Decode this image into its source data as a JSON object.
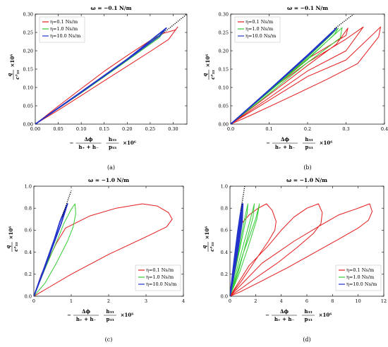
{
  "figure": {
    "panels": [
      {
        "id": "a",
        "title": "ω = −0.1 N/m",
        "caption": "(a)",
        "ylabel_num": "q",
        "ylabel_den": "c³₃₃",
        "ylabel_factor": "×10⁶",
        "xlabel_num": "Δϕ",
        "xlabel_den": "h₊ + h₋",
        "xlabel_frac2_num": "h₃₃",
        "xlabel_frac2_den": "p₃₃",
        "xlabel_prefix": "−",
        "xlabel_factor": "×10⁶",
        "legend": [
          "η=0.1 Ns/m",
          "η=1.0 Ns/m",
          "η=10.0 Ns/m"
        ],
        "xticks": [
          "0.00",
          "0.05",
          "0.10",
          "0.15",
          "0.20",
          "0.25",
          "0.30"
        ],
        "yticks": [
          "0.00",
          "0.05",
          "0.10",
          "0.15",
          "0.20",
          "0.25",
          "0.30"
        ]
      },
      {
        "id": "b",
        "title": "ω = −0.1 N/m",
        "caption": "(b)",
        "ylabel_num": "q",
        "ylabel_den": "c³₃₃",
        "ylabel_factor": "×10⁶",
        "xlabel_num": "Δϕ",
        "xlabel_den": "h₊ + h₋",
        "xlabel_frac2_num": "h₃₃",
        "xlabel_frac2_den": "p₃₃",
        "xlabel_prefix": "−",
        "xlabel_factor": "×10⁶",
        "legend": [
          "η=0.1 Ns/m",
          "η=1.0 Ns/m",
          "η=10.0 Ns/m"
        ],
        "xticks": [
          "0.0",
          "0.1",
          "0.2",
          "0.3",
          "0.4"
        ],
        "yticks": [
          "0.00",
          "0.05",
          "0.10",
          "0.15",
          "0.20",
          "0.25",
          "0.30"
        ]
      },
      {
        "id": "c",
        "title": "ω = −1.0 N/m",
        "caption": "(c)",
        "ylabel_num": "q",
        "ylabel_den": "c³₃₃",
        "ylabel_factor": "×10⁶",
        "xlabel_num": "Δϕ",
        "xlabel_den": "h₊ + h₋",
        "xlabel_frac2_num": "h₃₃",
        "xlabel_frac2_den": "p₃₃",
        "xlabel_prefix": "−",
        "xlabel_factor": "×10⁶",
        "legend": [
          "η=0.1 Ns/m",
          "η=1.0 Ns/m",
          "η=10.0 Ns/m"
        ],
        "xticks": [
          "0",
          "1",
          "2",
          "3",
          "4"
        ],
        "yticks": [
          "0.0",
          "0.2",
          "0.4",
          "0.6",
          "0.8",
          "1.0"
        ]
      },
      {
        "id": "d",
        "title": "ω = −1.0 N/m",
        "caption": "(d)",
        "ylabel_num": "q",
        "ylabel_den": "c³₃₃",
        "ylabel_factor": "×10⁶",
        "xlabel_num": "Δϕ",
        "xlabel_den": "h₊ + h₋",
        "xlabel_frac2_num": "h₃₃",
        "xlabel_frac2_den": "p₃₃",
        "xlabel_prefix": "−",
        "xlabel_factor": "×10⁶",
        "legend": [
          "η=0.1 Ns/m",
          "η=1.0 Ns/m",
          "η=10.0 Ns/m"
        ],
        "xticks": [
          "0",
          "2",
          "4",
          "6",
          "8",
          "10",
          "12"
        ],
        "yticks": [
          "0.0",
          "0.2",
          "0.4",
          "0.6",
          "0.8",
          "1.0"
        ]
      }
    ]
  },
  "chart_data": [
    {
      "type": "line",
      "xlim": [
        0,
        0.33
      ],
      "ylim": [
        0,
        0.3
      ],
      "legend_position": "top-left",
      "colors": {
        "eta_0_1": "#e41a1c",
        "eta_1_0": "#33cc33",
        "eta_10_0": "#2233cc",
        "reference": "#000000"
      },
      "series": [
        {
          "name": "η=0.1 Ns/m",
          "x": [
            0,
            0.05,
            0.1,
            0.15,
            0.2,
            0.25,
            0.29,
            0.31,
            0.305,
            0.28,
            0.25,
            0.2,
            0.15,
            0.1,
            0.05,
            0
          ],
          "y": [
            0,
            0.038,
            0.078,
            0.118,
            0.158,
            0.198,
            0.231,
            0.265,
            0.257,
            0.248,
            0.228,
            0.187,
            0.144,
            0.097,
            0.049,
            0
          ]
        },
        {
          "name": "η=1.0 Ns/m",
          "x": [
            0,
            0.1,
            0.2,
            0.27,
            0.285,
            0.27,
            0.2,
            0.1,
            0
          ],
          "y": [
            0,
            0.085,
            0.173,
            0.236,
            0.262,
            0.242,
            0.178,
            0.088,
            0
          ]
        },
        {
          "name": "η=10.0 Ns/m",
          "x": [
            0,
            0.1,
            0.2,
            0.285,
            0.27,
            0.2,
            0.1,
            0
          ],
          "y": [
            0,
            0.088,
            0.177,
            0.262,
            0.24,
            0.176,
            0.087,
            0
          ]
        },
        {
          "name": "",
          "style": "dotted",
          "x": [
            0.28,
            0.33
          ],
          "y": [
            0.25,
            0.3
          ]
        }
      ]
    },
    {
      "type": "line",
      "xlim": [
        0,
        0.4
      ],
      "ylim": [
        0,
        0.3
      ],
      "legend_position": "top-left",
      "series": [
        {
          "name": "η=0.1 Ns/m",
          "x": [
            0,
            0.1,
            0.2,
            0.3,
            0.345,
            0.3,
            0.2,
            0.1,
            0,
            0.1,
            0.2,
            0.3,
            0.39,
            0.385,
            0.33,
            0.25,
            0.15,
            0.05,
            0,
            0.1,
            0.2,
            0.275,
            0.305,
            0.3,
            0.2,
            0.1,
            0
          ],
          "y": [
            0,
            0.072,
            0.145,
            0.2,
            0.265,
            0.232,
            0.168,
            0.091,
            0,
            0.065,
            0.13,
            0.175,
            0.265,
            0.238,
            0.165,
            0.122,
            0.072,
            0.023,
            0,
            0.08,
            0.16,
            0.218,
            0.262,
            0.242,
            0.178,
            0.093,
            0
          ]
        },
        {
          "name": "η=1.0 Ns/m",
          "x": [
            0,
            0.1,
            0.2,
            0.29,
            0.285,
            0.2,
            0.1,
            0,
            0.1,
            0.2,
            0.28,
            0.27,
            0.2,
            0.1,
            0
          ],
          "y": [
            0,
            0.088,
            0.178,
            0.263,
            0.235,
            0.168,
            0.083,
            0,
            0.09,
            0.182,
            0.262,
            0.245,
            0.176,
            0.088,
            0
          ]
        },
        {
          "name": "η=10.0 Ns/m",
          "x": [
            0,
            0.1,
            0.2,
            0.275,
            0.26,
            0.2,
            0.1,
            0
          ],
          "y": [
            0,
            0.093,
            0.188,
            0.262,
            0.245,
            0.186,
            0.092,
            0
          ]
        },
        {
          "name": "",
          "style": "dotted",
          "x": [
            0.27,
            0.32
          ],
          "y": [
            0.26,
            0.3
          ]
        }
      ]
    },
    {
      "type": "line",
      "xlim": [
        0,
        4
      ],
      "ylim": [
        0,
        1
      ],
      "legend_position": "bottom-right",
      "series": [
        {
          "name": "η=0.1 Ns/m",
          "x": [
            0,
            0.2,
            0.6,
            0.85,
            1.5,
            2.2,
            2.9,
            3.3,
            3.6,
            3.7,
            3.55,
            3.0,
            2.0,
            1.0,
            0.4,
            0
          ],
          "y": [
            0,
            0.2,
            0.48,
            0.62,
            0.73,
            0.8,
            0.84,
            0.82,
            0.76,
            0.7,
            0.63,
            0.54,
            0.38,
            0.2,
            0.08,
            0
          ]
        },
        {
          "name": "η=1.0 Ns/m",
          "x": [
            0,
            0.3,
            0.65,
            0.8,
            1.0,
            1.1,
            1.12,
            1.05,
            0.9,
            0.6,
            0.3,
            0
          ],
          "y": [
            0,
            0.25,
            0.53,
            0.66,
            0.79,
            0.84,
            0.75,
            0.63,
            0.5,
            0.3,
            0.12,
            0
          ]
        },
        {
          "name": "η=10.0 Ns/m",
          "x": [
            0,
            0.3,
            0.55,
            0.7,
            0.85,
            0.9,
            0.72,
            0.5,
            0.25,
            0
          ],
          "y": [
            0,
            0.28,
            0.52,
            0.68,
            0.8,
            0.84,
            0.65,
            0.45,
            0.22,
            0
          ]
        },
        {
          "name": "",
          "style": "dotted",
          "x": [
            0.75,
            1.0
          ],
          "y": [
            0.72,
            0.96
          ]
        }
      ]
    },
    {
      "type": "line",
      "xlim": [
        0,
        12
      ],
      "ylim": [
        0,
        1
      ],
      "legend_position": "bottom-right",
      "series": [
        {
          "name": "η=0.1 Ns/m",
          "x": [
            0,
            0.4,
            0.9,
            1.5,
            2.2,
            2.85,
            3.3,
            3.6,
            3.5,
            3.0,
            2.0,
            0.9,
            0,
            1.5,
            3.0,
            4.0,
            5.0,
            6.0,
            6.9,
            7.2,
            7.1,
            6.5,
            5.2,
            3.8,
            2.3,
            1.0,
            0,
            2.5,
            5.0,
            7.0,
            8.5,
            10.0,
            10.9,
            11.1,
            10.8,
            10.0,
            8.5,
            6.5,
            4.5,
            2.5,
            0.8,
            0
          ],
          "y": [
            0,
            0.32,
            0.66,
            0.74,
            0.8,
            0.84,
            0.78,
            0.68,
            0.6,
            0.5,
            0.33,
            0.14,
            0,
            0.28,
            0.46,
            0.6,
            0.72,
            0.8,
            0.84,
            0.76,
            0.66,
            0.57,
            0.44,
            0.31,
            0.19,
            0.08,
            0,
            0.3,
            0.5,
            0.64,
            0.74,
            0.8,
            0.84,
            0.77,
            0.69,
            0.62,
            0.52,
            0.39,
            0.26,
            0.14,
            0.04,
            0
          ]
        },
        {
          "name": "η=1.0 Ns/m",
          "x": [
            0,
            0.6,
            1.1,
            1.4,
            1.35,
            1.0,
            0.5,
            0,
            0.8,
            1.5,
            1.9,
            1.8,
            1.2,
            0.6,
            0,
            1.0,
            2.0,
            2.3,
            2.1,
            1.4,
            0.7,
            0
          ],
          "y": [
            0,
            0.36,
            0.68,
            0.84,
            0.76,
            0.56,
            0.28,
            0,
            0.36,
            0.66,
            0.84,
            0.72,
            0.46,
            0.2,
            0,
            0.38,
            0.7,
            0.84,
            0.7,
            0.44,
            0.2,
            0
          ]
        },
        {
          "name": "η=10.0 Ns/m",
          "x": [
            0,
            0.3,
            0.6,
            0.8,
            0.95,
            0.9,
            0.7,
            0.45,
            0.2,
            0,
            0.35,
            0.65,
            0.85,
            1.0,
            0.95,
            0.7,
            0.4,
            0.15,
            0
          ],
          "y": [
            0,
            0.3,
            0.58,
            0.74,
            0.84,
            0.7,
            0.52,
            0.33,
            0.14,
            0,
            0.3,
            0.56,
            0.72,
            0.84,
            0.68,
            0.48,
            0.26,
            0.09,
            0
          ]
        },
        {
          "name": "",
          "style": "dotted",
          "x": [
            0.85,
            1.15
          ],
          "y": [
            0.78,
            1.0
          ]
        }
      ]
    }
  ]
}
